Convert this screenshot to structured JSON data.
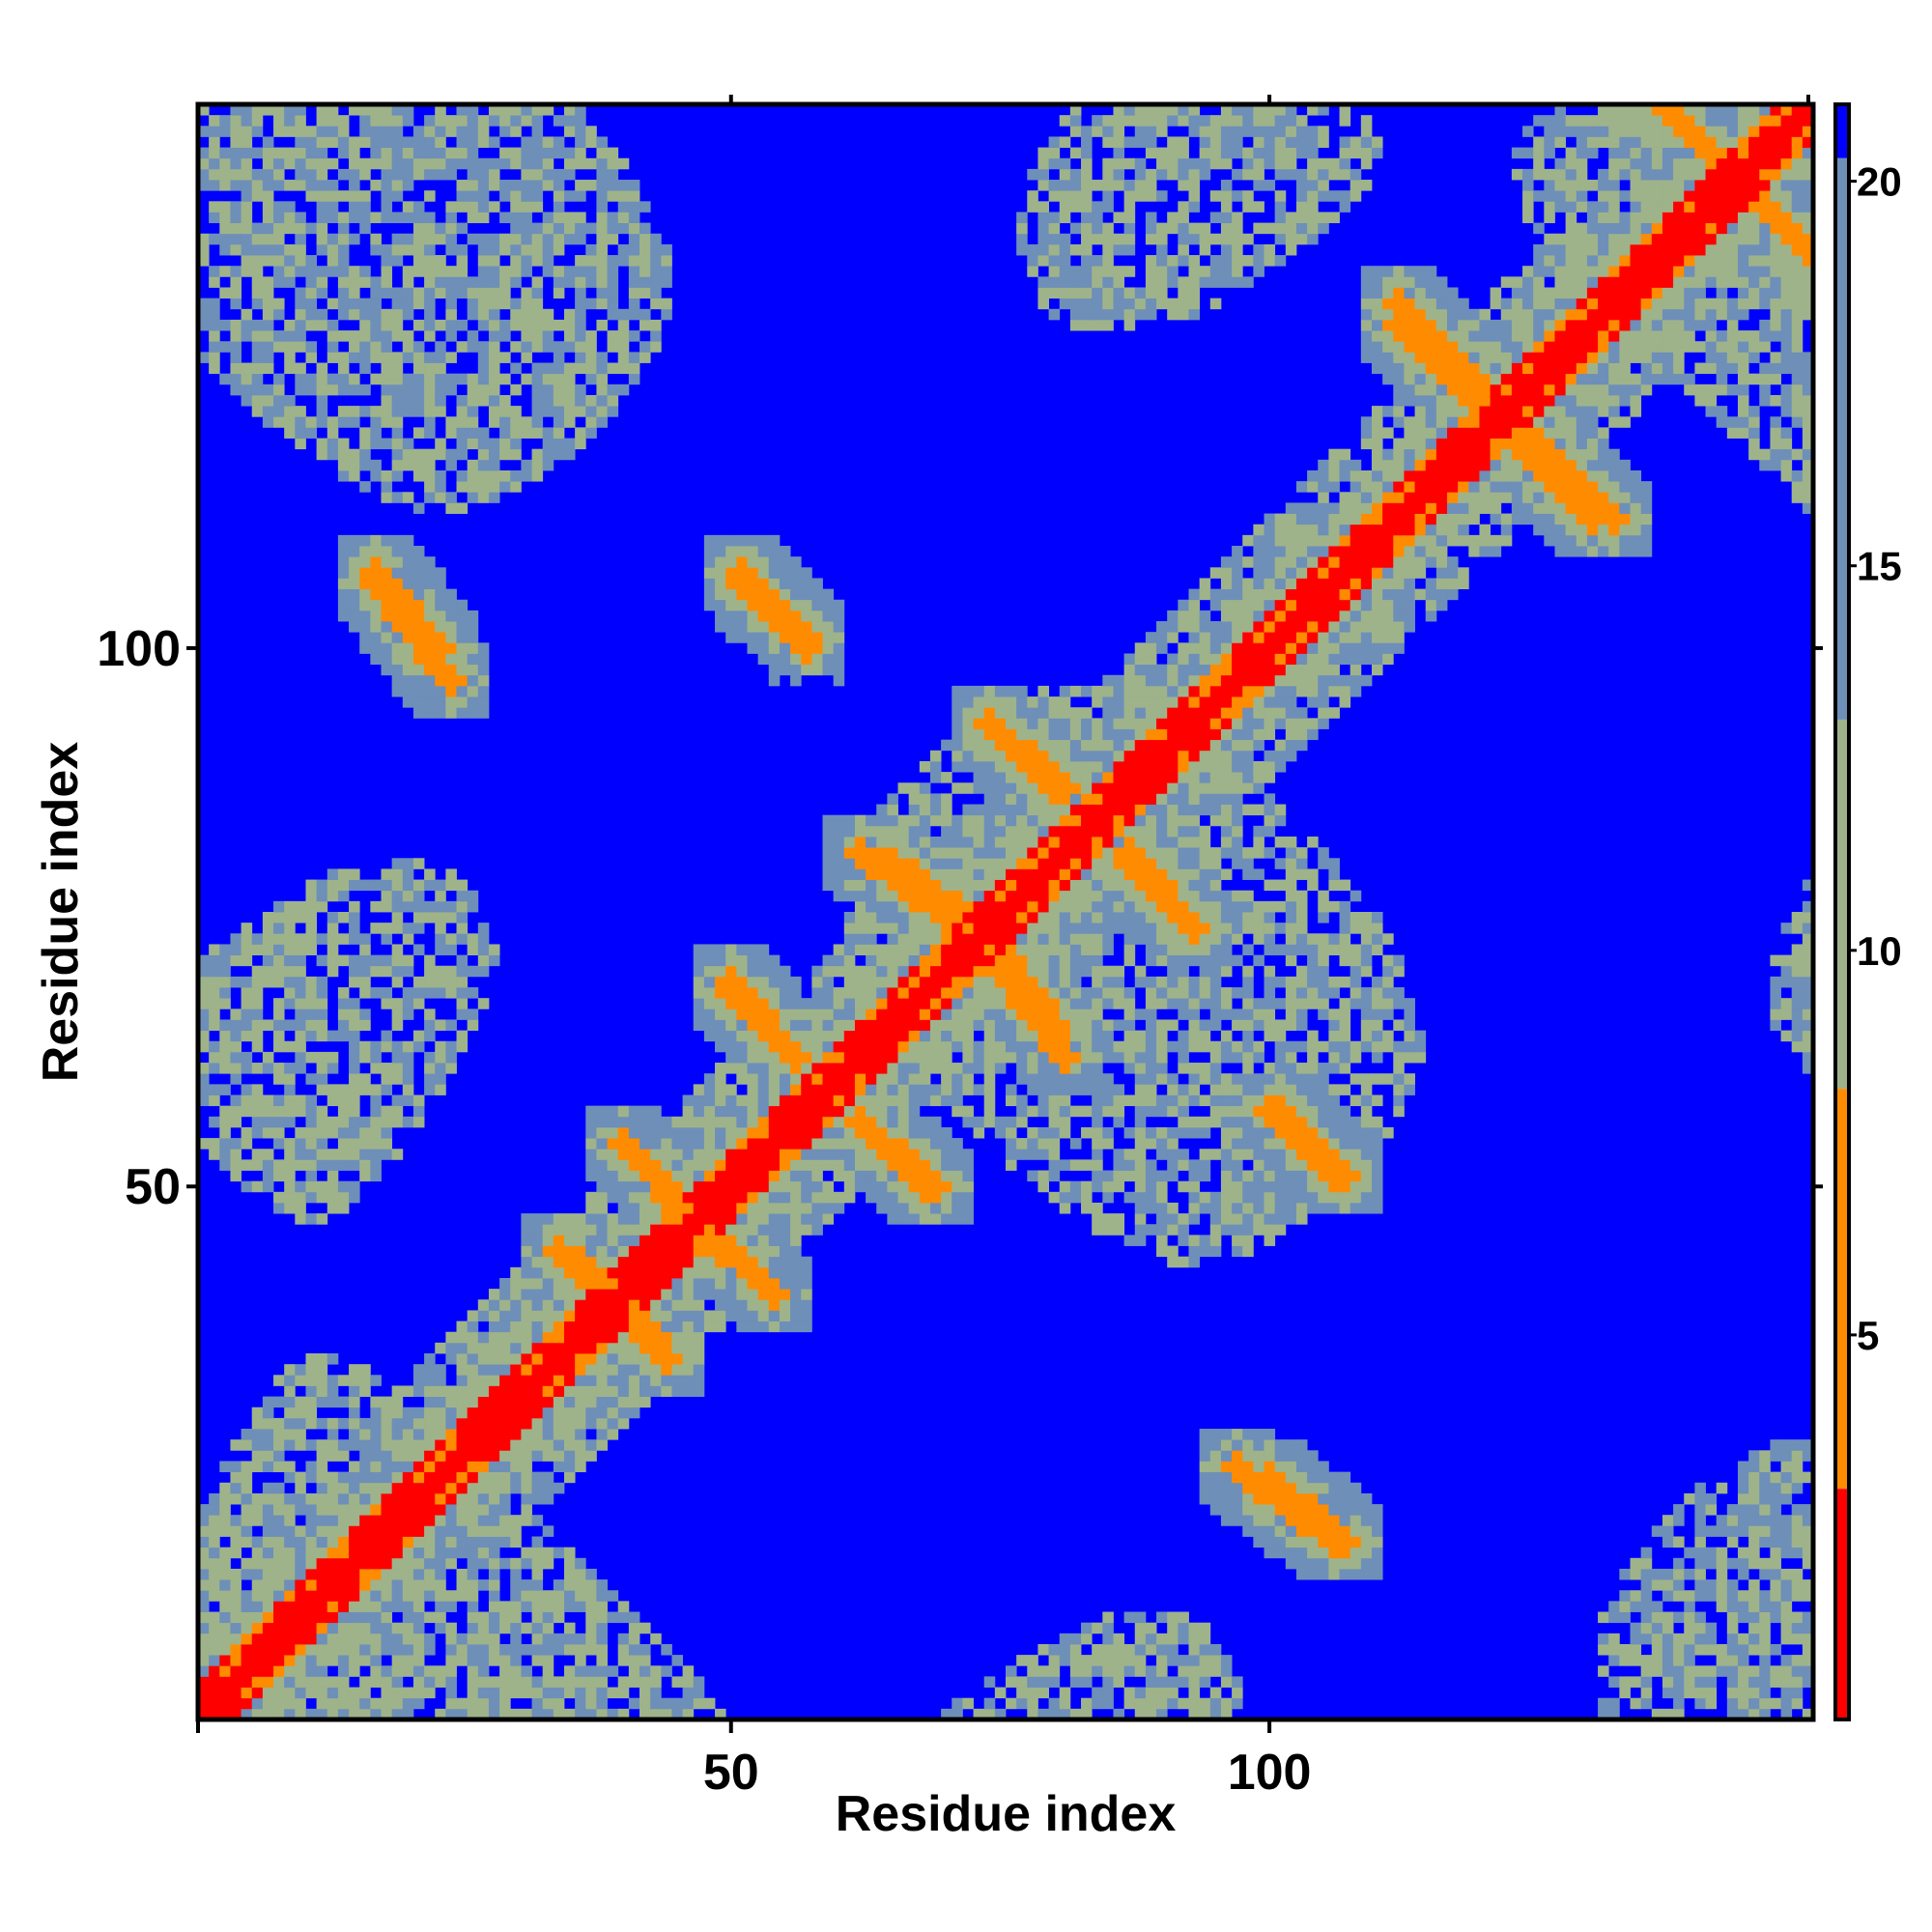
{
  "chart_data": {
    "type": "heatmap",
    "title": "",
    "xlabel": "Residue index",
    "ylabel": "Residue index",
    "n_residues": 150,
    "xlim": [
      1,
      150
    ],
    "ylim": [
      1,
      150
    ],
    "x_ticks": [
      50,
      100
    ],
    "y_ticks": [
      50,
      100
    ],
    "colorbar": {
      "ticks": [
        5,
        10,
        15,
        20
      ],
      "range": [
        0,
        21
      ],
      "colors": {
        "near": "#ff0000",
        "close": "#ff8c00",
        "mid": "#9fb38a",
        "far": "#6e8fb8",
        "background": "#0000ff"
      }
    },
    "contact_bands": [
      {
        "x": [
          40,
          48
        ],
        "y": [
          54,
          45
        ],
        "value": 6
      },
      {
        "x": [
          34,
          43
        ],
        "y": [
          44,
          36
        ],
        "value": 6
      },
      {
        "x": [
          62,
          68
        ],
        "y": [
          56,
          50
        ],
        "value": 6
      },
      {
        "x": [
          50,
          56
        ],
        "y": [
          69,
          62
        ],
        "value": 6
      },
      {
        "x": [
          62,
          74
        ],
        "y": [
          81,
          72
        ],
        "value": 6
      },
      {
        "x": [
          74,
          80
        ],
        "y": [
          73,
          65
        ],
        "value": 6
      },
      {
        "x": [
          74,
          80
        ],
        "y": [
          93,
          87
        ],
        "value": 6
      },
      {
        "x": [
          87,
          93
        ],
        "y": [
          81,
          74
        ],
        "value": 6
      },
      {
        "x": [
          17,
          23
        ],
        "y": [
          107,
          100
        ],
        "value": 6
      },
      {
        "x": [
          51,
          57
        ],
        "y": [
          107,
          101
        ],
        "value": 6
      },
      {
        "x": [
          112,
          120
        ],
        "y": [
          132,
          124
        ],
        "value": 6
      },
      {
        "x": [
          122,
          130
        ],
        "y": [
          120,
          112
        ],
        "value": 6
      },
      {
        "x": [
          100,
          106
        ],
        "y": [
          57,
          51
        ],
        "value": 6
      },
      {
        "x": [
          97,
          106
        ],
        "y": [
          24,
          17
        ],
        "value": 6
      },
      {
        "x": [
          137,
          150
        ],
        "y": [
          150,
          137
        ],
        "value": 6
      }
    ]
  }
}
